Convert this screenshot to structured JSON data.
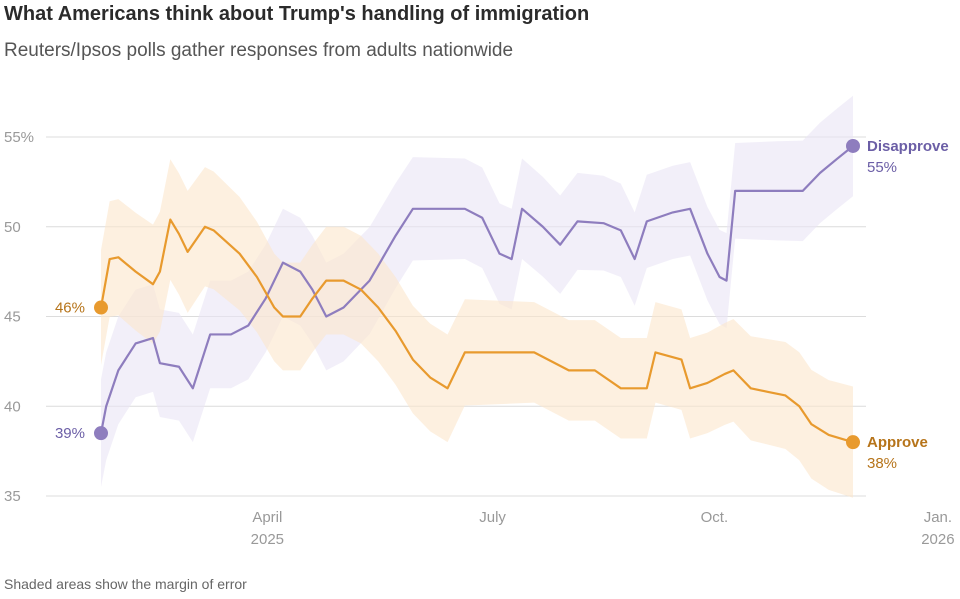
{
  "title": "What Americans think about Trump's handling of immigration",
  "subtitle": "Reuters/Ipsos polls gather responses from adults nationwide",
  "footnote": "Shaded areas show the margin of error",
  "chart_data": {
    "type": "line",
    "title": "What Americans think about Trump's handling of immigration",
    "subtitle": "Reuters/Ipsos polls gather responses from adults nationwide",
    "xlabel": "",
    "ylabel": "",
    "x_unit": "weeks since late January 2025",
    "xlim": [
      0,
      54
    ],
    "ylim": [
      35,
      56
    ],
    "y_ticks": [
      35,
      40,
      45,
      50,
      55
    ],
    "y_tick_labels": [
      "35",
      "40",
      "45",
      "50",
      "55%"
    ],
    "x_ticks": [
      {
        "x": 9.6,
        "line1": "April",
        "line2": "2025"
      },
      {
        "x": 22.6,
        "line1": "July",
        "line2": ""
      },
      {
        "x": 35.4,
        "line1": "Oct.",
        "line2": ""
      },
      {
        "x": 48.3,
        "line1": "Jan.",
        "line2": "2026"
      }
    ],
    "grid": true,
    "margin_of_error_shading": true,
    "series": [
      {
        "name": "Disapprove",
        "color": "#8e7dbe",
        "band_color": "#e9e4f5",
        "end_label": "Disapprove",
        "end_value_label": "55%",
        "start_value_label": "39%",
        "points": [
          [
            0,
            38.5
          ],
          [
            0.3,
            40.0
          ],
          [
            1.0,
            42.0
          ],
          [
            2.0,
            43.5
          ],
          [
            3.0,
            43.8
          ],
          [
            3.4,
            42.4
          ],
          [
            4.5,
            42.2
          ],
          [
            5.3,
            41.0
          ],
          [
            6.3,
            44.0
          ],
          [
            7.5,
            44.0
          ],
          [
            8.5,
            44.5
          ],
          [
            9.5,
            46.0
          ],
          [
            10.5,
            48.0
          ],
          [
            11.5,
            47.5
          ],
          [
            12.2,
            46.5
          ],
          [
            13.0,
            45.0
          ],
          [
            14.0,
            45.5
          ],
          [
            15.5,
            47.0
          ],
          [
            17.0,
            49.5
          ],
          [
            18.0,
            51.0
          ],
          [
            21.0,
            51.0
          ],
          [
            22.0,
            50.5
          ],
          [
            23.0,
            48.5
          ],
          [
            23.7,
            48.2
          ],
          [
            24.3,
            51.0
          ],
          [
            25.5,
            50.0
          ],
          [
            26.5,
            49.0
          ],
          [
            27.5,
            50.3
          ],
          [
            29.0,
            50.2
          ],
          [
            30.0,
            49.8
          ],
          [
            30.8,
            48.2
          ],
          [
            31.5,
            50.3
          ],
          [
            33.0,
            50.8
          ],
          [
            34.0,
            51.0
          ],
          [
            35.0,
            48.5
          ],
          [
            35.7,
            47.2
          ],
          [
            36.1,
            47.0
          ],
          [
            36.6,
            52.0
          ],
          [
            39.0,
            52.0
          ],
          [
            40.5,
            52.0
          ],
          [
            41.5,
            53.0
          ],
          [
            42.5,
            53.8
          ],
          [
            43.4,
            54.5
          ]
        ],
        "moe": [
          [
            0,
            3.0
          ],
          [
            5,
            3.0
          ],
          [
            10,
            3.0
          ],
          [
            15,
            3.0
          ],
          [
            20,
            2.8
          ],
          [
            25,
            2.8
          ],
          [
            30,
            2.6
          ],
          [
            35,
            2.6
          ],
          [
            40,
            2.8
          ],
          [
            43.4,
            2.8
          ]
        ]
      },
      {
        "name": "Approve",
        "color": "#e89a2e",
        "band_color": "#fbe6cc",
        "end_label": "Approve",
        "end_value_label": "38%",
        "start_value_label": "46%",
        "points": [
          [
            0,
            45.5
          ],
          [
            0.5,
            48.2
          ],
          [
            1.0,
            48.3
          ],
          [
            2.0,
            47.5
          ],
          [
            3.0,
            46.8
          ],
          [
            3.4,
            47.5
          ],
          [
            4.0,
            50.4
          ],
          [
            4.5,
            49.6
          ],
          [
            5.0,
            48.6
          ],
          [
            5.5,
            49.3
          ],
          [
            6.0,
            50.0
          ],
          [
            6.5,
            49.8
          ],
          [
            8.0,
            48.5
          ],
          [
            9.0,
            47.2
          ],
          [
            10.0,
            45.5
          ],
          [
            10.5,
            45.0
          ],
          [
            11.5,
            45.0
          ],
          [
            12.2,
            46.0
          ],
          [
            13.0,
            47.0
          ],
          [
            14.0,
            47.0
          ],
          [
            15.0,
            46.5
          ],
          [
            16.0,
            45.5
          ],
          [
            17.0,
            44.2
          ],
          [
            18.0,
            42.6
          ],
          [
            19.0,
            41.6
          ],
          [
            20.0,
            41.0
          ],
          [
            21.0,
            43.0
          ],
          [
            22.0,
            43.0
          ],
          [
            25.0,
            43.0
          ],
          [
            26.0,
            42.5
          ],
          [
            27.0,
            42.0
          ],
          [
            28.5,
            42.0
          ],
          [
            30.0,
            41.0
          ],
          [
            31.5,
            41.0
          ],
          [
            32.0,
            43.0
          ],
          [
            33.5,
            42.6
          ],
          [
            34.0,
            41.0
          ],
          [
            35.0,
            41.3
          ],
          [
            36.0,
            41.8
          ],
          [
            36.5,
            42.0
          ],
          [
            37.5,
            41.0
          ],
          [
            38.5,
            40.8
          ],
          [
            39.5,
            40.6
          ],
          [
            40.3,
            40.0
          ],
          [
            41.0,
            39.0
          ],
          [
            42.0,
            38.4
          ],
          [
            43.4,
            38.0
          ]
        ],
        "moe": [
          [
            0,
            3.2
          ],
          [
            5,
            3.4
          ],
          [
            10,
            3.0
          ],
          [
            15,
            3.0
          ],
          [
            20,
            3.0
          ],
          [
            25,
            2.8
          ],
          [
            30,
            2.8
          ],
          [
            35,
            2.8
          ],
          [
            40,
            3.0
          ],
          [
            43.4,
            3.1
          ]
        ]
      }
    ]
  }
}
